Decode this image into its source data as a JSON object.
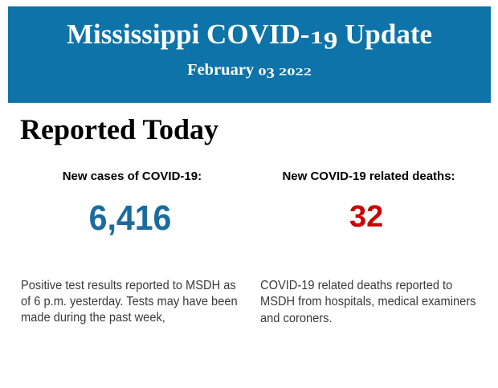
{
  "banner": {
    "title": "Mississippi COVID-19 Update",
    "date": "February 03 2022",
    "background_color": "#0d73a8",
    "text_color": "#ffffff"
  },
  "section": {
    "title": "Reported Today"
  },
  "stats": {
    "cases": {
      "label": "New cases of COVID-19:",
      "value": "6,416",
      "value_color": "#1a6b9e",
      "description": "Positive test results reported to MSDH as\nof 6 p.m. yesterday. Tests may have been\nmade during the past week,"
    },
    "deaths": {
      "label": "New COVID-19 related deaths:",
      "value": "32",
      "value_color": "#cc0000",
      "description": "COVID-19 related deaths reported to\nMSDH from hospitals, medical examiners\nand coroners."
    }
  }
}
